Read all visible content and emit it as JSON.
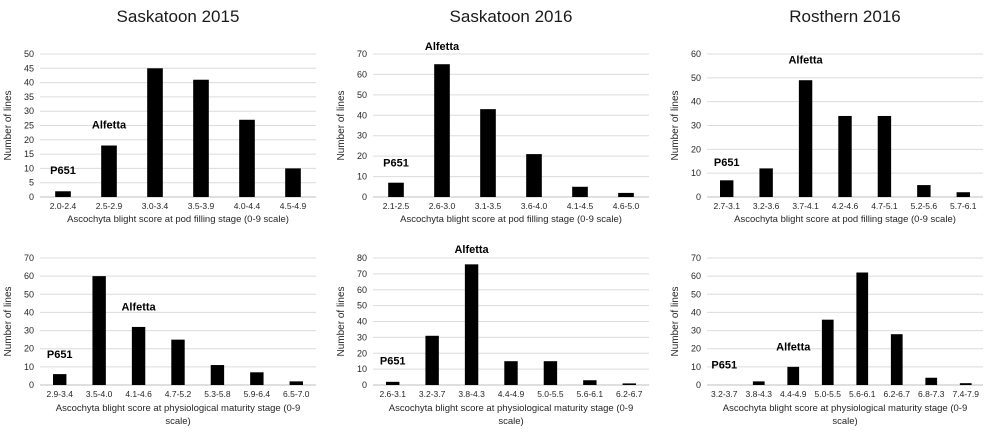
{
  "figure": {
    "background": "#ffffff",
    "bar_color": "#000000",
    "gridline_color": "#dcdcdc",
    "axis_line_color": "#bfbfbf",
    "tick_text_color": "#262626",
    "title_text_color": "#1a1a1a",
    "annotation_text_color": "#000000"
  },
  "chart_data": [
    {
      "id": "saskatoon-2015-pod-filling",
      "type": "bar",
      "title": "Saskatoon 2015",
      "categories": [
        "2.0-2.4",
        "2.5-2.9",
        "3.0-3.4",
        "3.5-3.9",
        "4.0-4.4",
        "4.5-4.9"
      ],
      "values": [
        2,
        18,
        45,
        41,
        27,
        10
      ],
      "xlabel_lines": [
        "Ascochyta blight score at pod filling stage (0-9 scale)"
      ],
      "ylabel": "Number of lines",
      "ylim": [
        0,
        50
      ],
      "ytick": 5,
      "grid": true,
      "legend": "none",
      "annotations": [
        {
          "text": "P651",
          "category_index": 0,
          "y": 8
        },
        {
          "text": "Alfetta",
          "category_index": 1,
          "y": 24
        }
      ]
    },
    {
      "id": "saskatoon-2016-pod-filling",
      "type": "bar",
      "title": "Saskatoon 2016",
      "categories": [
        "2.1-2.5",
        "2.6-3.0",
        "3.1-3.5",
        "3.6-4.0",
        "4.1-4.5",
        "4.6-5.0"
      ],
      "values": [
        7,
        65,
        43,
        21,
        5,
        2
      ],
      "xlabel_lines": [
        "Ascochyta blight score at pod filling stage (0-9 scale)"
      ],
      "ylabel": "Number of lines",
      "ylim": [
        0,
        70
      ],
      "ytick": 10,
      "grid": true,
      "legend": "none",
      "annotations": [
        {
          "text": "P651",
          "category_index": 0,
          "y": 15
        },
        {
          "text": "Alfetta",
          "category_index": 1,
          "y": 72
        }
      ]
    },
    {
      "id": "rosthern-2016-pod-filling",
      "type": "bar",
      "title": "Rosthern 2016",
      "categories": [
        "2.7-3.1",
        "3.2-3.6",
        "3.7-4.1",
        "4.2-4.6",
        "4.7-5.1",
        "5.2-5.6",
        "5.7-6.1"
      ],
      "values": [
        7,
        12,
        49,
        34,
        34,
        5,
        2
      ],
      "xlabel_lines": [
        "Ascochyta blight score at pod filling stage (0-9 scale)"
      ],
      "ylabel": "Number of lines",
      "ylim": [
        0,
        60
      ],
      "ytick": 10,
      "grid": true,
      "legend": "none",
      "annotations": [
        {
          "text": "P651",
          "category_index": 0,
          "y": 13
        },
        {
          "text": "Alfetta",
          "category_index": 2,
          "y": 56
        }
      ]
    },
    {
      "id": "saskatoon-2015-physiological-maturity",
      "type": "bar",
      "title": "",
      "categories": [
        "2.9-3.4",
        "3.5-4.0",
        "4.1-4.6",
        "4.7-5.2",
        "5.3-5.8",
        "5.9-6.4",
        "6.5-7.0"
      ],
      "values": [
        6,
        60,
        32,
        25,
        11,
        7,
        2
      ],
      "xlabel_lines": [
        "Ascochyta blight score at physiological maturity stage (0-9",
        "scale)"
      ],
      "ylabel": "Number of lines",
      "ylim": [
        0,
        70
      ],
      "ytick": 10,
      "grid": true,
      "legend": "none",
      "annotations": [
        {
          "text": "P651",
          "category_index": 0,
          "y": 15
        },
        {
          "text": "Alfetta",
          "category_index": 2,
          "y": 41
        }
      ]
    },
    {
      "id": "saskatoon-2016-physiological-maturity",
      "type": "bar",
      "title": "",
      "categories": [
        "2.6-3.1",
        "3.2-3.7",
        "3.8-4.3",
        "4.4-4.9",
        "5.0-5.5",
        "5.6-6.1",
        "6.2-6.7"
      ],
      "values": [
        2,
        31,
        76,
        15,
        15,
        3,
        1
      ],
      "xlabel_lines": [
        "Ascochyta blight score at physiological maturity stage (0-9",
        "scale)"
      ],
      "ylabel": "Number of lines",
      "ylim": [
        0,
        80
      ],
      "ytick": 10,
      "grid": true,
      "legend": "none",
      "annotations": [
        {
          "text": "P651",
          "category_index": 0,
          "y": 13
        },
        {
          "text": "Alfetta",
          "category_index": 2,
          "y": 83
        }
      ]
    },
    {
      "id": "rosthern-2016-physiological-maturity",
      "type": "bar",
      "title": "",
      "categories": [
        "3.2-3.7",
        "3.8-4.3",
        "4.4-4.9",
        "5.0-5.5",
        "5.6-6.1",
        "6.2-6.7",
        "6.8-7.3",
        "7.4-7.9"
      ],
      "values": [
        0,
        2,
        10,
        36,
        62,
        28,
        4,
        1
      ],
      "xlabel_lines": [
        "Ascochyta blight score at physiological maturity stage (0-9",
        "scale)"
      ],
      "ylabel": "Number of lines",
      "ylim": [
        0,
        70
      ],
      "ytick": 10,
      "grid": true,
      "legend": "none",
      "annotations": [
        {
          "text": "P651",
          "category_index": 0,
          "y": 9
        },
        {
          "text": "Alfetta",
          "category_index": 2,
          "y": 19
        }
      ]
    }
  ]
}
